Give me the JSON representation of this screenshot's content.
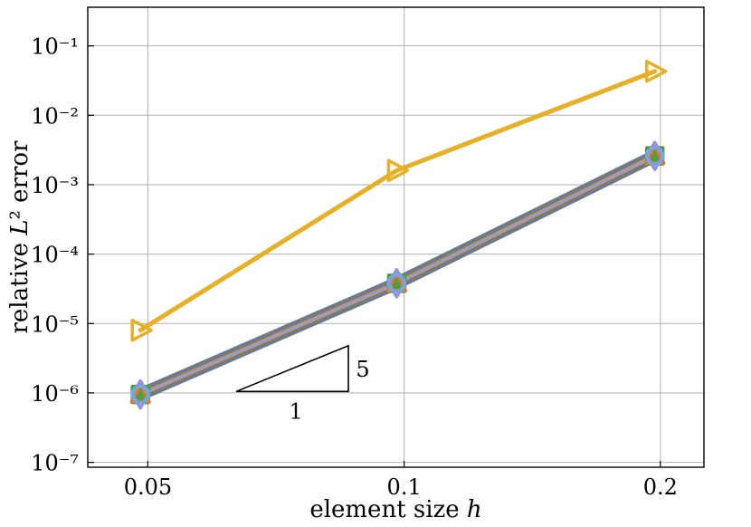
{
  "chart_data": {
    "type": "line",
    "xscale": "log",
    "yscale": "log",
    "xlabel": "element size h",
    "ylabel": "relative L² error",
    "xlim": [
      0.0425,
      0.225
    ],
    "ylim": [
      8.5e-08,
      0.36
    ],
    "grid": true,
    "x_ticks": [
      {
        "value": 0.05,
        "label": "0.05"
      },
      {
        "value": 0.1,
        "label": "0.1"
      },
      {
        "value": 0.2,
        "label": "0.2"
      }
    ],
    "y_ticks": [
      {
        "value": 1e-07,
        "label": "10⁻⁷"
      },
      {
        "value": 1e-06,
        "label": "10⁻⁶"
      },
      {
        "value": 1e-05,
        "label": "10⁻⁵"
      },
      {
        "value": 0.0001,
        "label": "10⁻⁴"
      },
      {
        "value": 0.001,
        "label": "10⁻³"
      },
      {
        "value": 0.01,
        "label": "10⁻²"
      },
      {
        "value": 0.1,
        "label": "10⁻¹"
      }
    ],
    "series": [
      {
        "color": "#6b7a8f",
        "marker": "none",
        "width": 14,
        "x": [
          0.049,
          0.098,
          0.197
        ],
        "y": [
          9.5e-07,
          3.8e-05,
          0.0026
        ]
      },
      {
        "color": "#5a9a3f",
        "marker": "square",
        "width": 6,
        "x": [
          0.049,
          0.098,
          0.197
        ],
        "y": [
          9.5e-07,
          3.8e-05,
          0.0026
        ]
      },
      {
        "color": "#e07a2e",
        "marker": "triangle-up",
        "width": 5,
        "x": [
          0.049,
          0.098,
          0.197
        ],
        "y": [
          9.5e-07,
          3.8e-05,
          0.0026
        ]
      },
      {
        "color": "#c9a0c8",
        "marker": "none",
        "width": 3,
        "x": [
          0.049,
          0.098,
          0.197
        ],
        "y": [
          9.5e-07,
          3.8e-05,
          0.0026
        ]
      },
      {
        "color": "#9b8fe0",
        "marker": "diamond",
        "width": 2,
        "x": [
          0.049,
          0.098,
          0.197
        ],
        "y": [
          9.5e-07,
          3.8e-05,
          0.0026
        ]
      },
      {
        "color": "#6fa8e6",
        "marker": "circle",
        "width": 1.5,
        "x": [
          0.049,
          0.098,
          0.197
        ],
        "y": [
          9.5e-07,
          3.8e-05,
          0.0026
        ]
      },
      {
        "color": "#e8b025",
        "marker": "triangle-right",
        "width": 5,
        "x": [
          0.049,
          0.098,
          0.197
        ],
        "y": [
          8e-06,
          0.0016,
          0.043
        ]
      }
    ],
    "slope_triangle": {
      "run_label": "1",
      "rise_label": "5",
      "x_start": 0.0635,
      "x_end": 0.086,
      "y_base": 1.05e-06
    }
  }
}
